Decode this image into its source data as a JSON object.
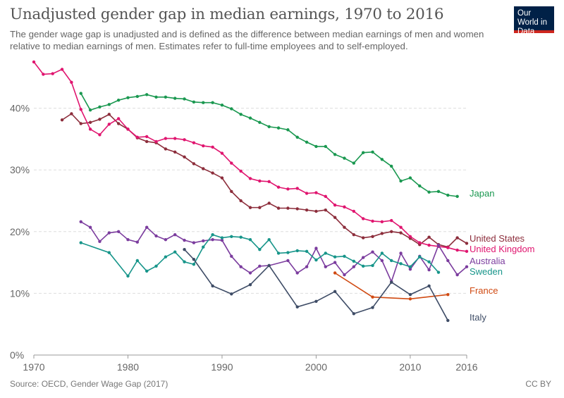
{
  "header": {
    "title": "Unadjusted gender gap in median earnings, 1970 to 2016",
    "subtitle": "The gender wage gap is unadjusted and is defined as the difference between median earnings of men and women relative to median earnings of men. Estimates refer to full-time employees and to self-employed.",
    "logo_text": "Our World in Data"
  },
  "footer": {
    "source": "Source: OECD, Gender Wage Gap (2017)",
    "license": "CC BY"
  },
  "chart_data": {
    "type": "line",
    "title": "Unadjusted gender gap in median earnings, 1970 to 2016",
    "xlim": [
      1970,
      2016
    ],
    "ylim": [
      0,
      48
    ],
    "x_ticks": [
      "1970",
      "1980",
      "1990",
      "2000",
      "2010",
      "2016"
    ],
    "y_ticks": [
      "0%",
      "10%",
      "20%",
      "30%",
      "40%"
    ],
    "grid": "horizontal dashed",
    "legend": "right, inline labels at line ends",
    "series": [
      {
        "name": "Japan",
        "color": "#1a9850",
        "x": [
          1975,
          1976,
          1977,
          1978,
          1979,
          1980,
          1981,
          1982,
          1983,
          1984,
          1985,
          1986,
          1987,
          1988,
          1989,
          1990,
          1991,
          1992,
          1993,
          1994,
          1995,
          1996,
          1997,
          1998,
          1999,
          2000,
          2001,
          2002,
          2003,
          2004,
          2005,
          2006,
          2007,
          2008,
          2009,
          2010,
          2011,
          2012,
          2013,
          2014,
          2015
        ],
        "y": [
          42.4,
          39.7,
          40.2,
          40.6,
          41.3,
          41.7,
          41.9,
          42.2,
          41.8,
          41.8,
          41.6,
          41.5,
          41.0,
          40.9,
          40.9,
          40.5,
          39.9,
          39.0,
          38.4,
          37.7,
          37.0,
          36.8,
          36.5,
          35.3,
          34.5,
          33.8,
          33.8,
          32.5,
          31.9,
          31.1,
          32.8,
          32.9,
          31.7,
          30.6,
          28.2,
          28.7,
          27.4,
          26.4,
          26.5,
          25.9,
          25.7
        ]
      },
      {
        "name": "United States",
        "color": "#8c2d3b",
        "x": [
          1973,
          1974,
          1975,
          1976,
          1977,
          1978,
          1979,
          1980,
          1981,
          1982,
          1983,
          1984,
          1985,
          1986,
          1987,
          1988,
          1989,
          1990,
          1991,
          1992,
          1993,
          1994,
          1995,
          1996,
          1997,
          1998,
          1999,
          2000,
          2001,
          2002,
          2003,
          2004,
          2005,
          2006,
          2007,
          2008,
          2009,
          2010,
          2011,
          2012,
          2013,
          2014,
          2015,
          2016
        ],
        "y": [
          38.1,
          39.1,
          37.5,
          37.7,
          38.2,
          39.0,
          37.5,
          36.6,
          35.2,
          34.6,
          34.4,
          33.4,
          32.9,
          32.1,
          31.0,
          30.2,
          29.5,
          28.7,
          26.5,
          25.0,
          23.9,
          23.9,
          24.6,
          23.8,
          23.8,
          23.7,
          23.5,
          23.3,
          23.5,
          22.3,
          20.7,
          19.5,
          19.0,
          19.2,
          19.7,
          20.0,
          19.8,
          18.9,
          17.9,
          19.1,
          17.9,
          17.5,
          19.0,
          18.1
        ]
      },
      {
        "name": "United Kingdom",
        "color": "#e0156f",
        "x": [
          1970,
          1971,
          1972,
          1973,
          1974,
          1975,
          1976,
          1977,
          1978,
          1979,
          1980,
          1981,
          1982,
          1983,
          1984,
          1985,
          1986,
          1987,
          1988,
          1989,
          1990,
          1991,
          1992,
          1993,
          1994,
          1995,
          1996,
          1997,
          1998,
          1999,
          2000,
          2001,
          2002,
          2003,
          2004,
          2005,
          2006,
          2007,
          2008,
          2009,
          2010,
          2011,
          2012,
          2013,
          2014,
          2015,
          2016
        ],
        "y": [
          47.5,
          45.5,
          45.6,
          46.3,
          44.2,
          39.8,
          36.6,
          35.7,
          37.4,
          38.3,
          36.6,
          35.3,
          35.4,
          34.6,
          35.1,
          35.1,
          34.9,
          34.4,
          33.9,
          33.7,
          32.7,
          31.1,
          29.8,
          28.6,
          28.2,
          28.1,
          27.2,
          26.9,
          27.0,
          26.2,
          26.3,
          25.7,
          24.3,
          24.0,
          23.3,
          22.1,
          21.7,
          21.6,
          21.8,
          20.7,
          19.2,
          18.2,
          17.8,
          17.6,
          17.4,
          17.0,
          16.8
        ]
      },
      {
        "name": "Australia",
        "color": "#7b3c9e",
        "x": [
          1975,
          1976,
          1977,
          1978,
          1979,
          1980,
          1981,
          1982,
          1983,
          1984,
          1985,
          1986,
          1987,
          1988,
          1989,
          1990,
          1991,
          1992,
          1993,
          1994,
          1995,
          1997,
          1998,
          1999,
          2000,
          2001,
          2002,
          2003,
          2004,
          2005,
          2006,
          2007,
          2008,
          2009,
          2010,
          2011,
          2012,
          2013,
          2014,
          2015,
          2016
        ],
        "y": [
          21.6,
          20.7,
          18.4,
          19.8,
          20.0,
          18.7,
          18.3,
          20.7,
          19.3,
          18.7,
          19.5,
          18.6,
          18.2,
          18.5,
          18.7,
          18.6,
          16.0,
          14.3,
          13.3,
          14.4,
          14.5,
          15.3,
          13.3,
          14.3,
          17.3,
          14.3,
          15.0,
          13.0,
          14.3,
          15.8,
          16.7,
          15.3,
          11.9,
          16.5,
          13.9,
          16.0,
          13.8,
          17.8,
          15.3,
          13.0,
          14.3
        ]
      },
      {
        "name": "Sweden",
        "color": "#17958a",
        "x": [
          1975,
          1978,
          1980,
          1981,
          1982,
          1983,
          1984,
          1985,
          1986,
          1987,
          1988,
          1989,
          1990,
          1991,
          1992,
          1993,
          1994,
          1995,
          1996,
          1997,
          1998,
          1999,
          2000,
          2001,
          2002,
          2003,
          2004,
          2005,
          2006,
          2007,
          2008,
          2009,
          2010,
          2011,
          2012,
          2013
        ],
        "y": [
          18.2,
          16.6,
          12.8,
          15.3,
          13.6,
          14.4,
          15.9,
          16.7,
          15.1,
          14.7,
          17.5,
          19.5,
          19.0,
          19.2,
          19.1,
          18.7,
          17.1,
          18.7,
          16.5,
          16.6,
          16.9,
          16.8,
          15.4,
          16.5,
          15.9,
          16.0,
          15.2,
          14.4,
          14.5,
          16.5,
          15.3,
          14.8,
          14.3,
          15.9,
          15.1,
          13.4
        ]
      },
      {
        "name": "France",
        "color": "#d04a12",
        "x": [
          2002,
          2006,
          2010,
          2014
        ],
        "y": [
          13.3,
          9.4,
          9.1,
          9.8
        ]
      },
      {
        "name": "Italy",
        "color": "#3e4c66",
        "x": [
          1986,
          1987,
          1989,
          1991,
          1993,
          1995,
          1998,
          2000,
          2002,
          2004,
          2006,
          2008,
          2010,
          2012,
          2014
        ],
        "y": [
          17.1,
          15.5,
          11.2,
          9.9,
          11.4,
          14.5,
          7.8,
          8.7,
          10.3,
          6.7,
          7.7,
          11.8,
          9.8,
          11.2,
          5.6
        ]
      }
    ]
  }
}
